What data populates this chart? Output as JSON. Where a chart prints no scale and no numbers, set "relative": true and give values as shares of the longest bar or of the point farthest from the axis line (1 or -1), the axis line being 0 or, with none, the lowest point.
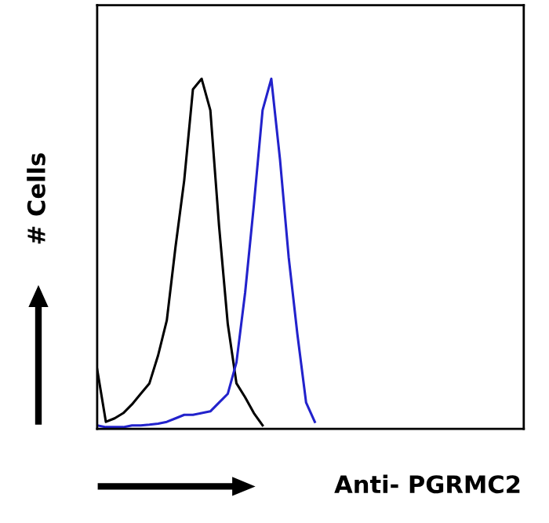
{
  "chart_data": {
    "type": "line",
    "relative": true,
    "xlabel": "Anti- PGRMC2",
    "ylabel": "# Cells",
    "grid": false,
    "legend": false,
    "categories": [
      null,
      null,
      null,
      null,
      null,
      null,
      null,
      null,
      null,
      null,
      null,
      null,
      null,
      null,
      null,
      null,
      null,
      null,
      null,
      null,
      null,
      null,
      null,
      null,
      null,
      null,
      null,
      null,
      null,
      null,
      null,
      null,
      null,
      null,
      null,
      null,
      null,
      null,
      null,
      null,
      null,
      null,
      null,
      null,
      null,
      null,
      null,
      null,
      null,
      null
    ],
    "series": [
      {
        "color": "#000000",
        "values": [
          0.17,
          0.02,
          0.03,
          0.045,
          0.07,
          0.1,
          0.13,
          0.21,
          0.31,
          0.52,
          0.71,
          0.97,
          1.0,
          0.91,
          0.58,
          0.3,
          0.13,
          0.09,
          0.045,
          0.01,
          null,
          null,
          null,
          null,
          null,
          null,
          null,
          null,
          null,
          null,
          null,
          null,
          null,
          null,
          null,
          null,
          null,
          null,
          null,
          null,
          null,
          null,
          null,
          null,
          null,
          null,
          null,
          null,
          null,
          null
        ]
      },
      {
        "color": "#2222cc",
        "values": [
          0.01,
          0.005,
          0.005,
          0.005,
          0.01,
          0.01,
          0.012,
          0.015,
          0.02,
          0.03,
          0.04,
          0.04,
          0.045,
          0.05,
          0.075,
          0.1,
          0.19,
          0.39,
          0.64,
          0.91,
          1.0,
          0.77,
          0.49,
          0.27,
          0.075,
          0.02,
          null,
          null,
          null,
          null,
          null,
          null,
          null,
          null,
          null,
          null,
          null,
          null,
          null,
          null,
          null,
          null,
          null,
          null,
          null,
          null,
          null,
          null,
          null,
          null
        ]
      }
    ]
  }
}
